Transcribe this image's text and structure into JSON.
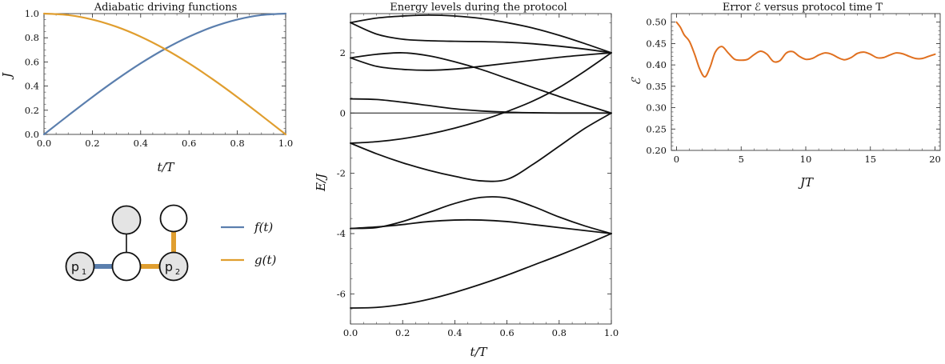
{
  "chart_data": [
    {
      "type": "line",
      "title": "Adiabatic driving functions",
      "xlabel": "t/T",
      "ylabel": "J",
      "xlim": [
        0,
        1
      ],
      "ylim": [
        0,
        1
      ],
      "xticks": [
        "0.0",
        "0.2",
        "0.4",
        "0.6",
        "0.8",
        "1.0"
      ],
      "yticks": [
        "0.0",
        "0.2",
        "0.4",
        "0.6",
        "0.8",
        "1.0"
      ],
      "legend_placement": "below-right",
      "series": [
        {
          "name": "f(t)",
          "color": "#5b7fae",
          "x": [
            0,
            0.1,
            0.2,
            0.3,
            0.4,
            0.5,
            0.6,
            0.7,
            0.8,
            0.9,
            1.0
          ],
          "y": [
            0,
            0.156,
            0.309,
            0.454,
            0.588,
            0.707,
            0.809,
            0.891,
            0.951,
            0.988,
            1.0
          ]
        },
        {
          "name": "g(t)",
          "color": "#e09e2f",
          "x": [
            0,
            0.1,
            0.2,
            0.3,
            0.4,
            0.5,
            0.6,
            0.7,
            0.8,
            0.9,
            1.0
          ],
          "y": [
            1.0,
            0.988,
            0.951,
            0.891,
            0.809,
            0.707,
            0.588,
            0.454,
            0.309,
            0.156,
            0
          ]
        }
      ]
    },
    {
      "type": "line",
      "title": "Energy levels during the protocol",
      "xlabel": "t/T",
      "ylabel": "E/J",
      "xlim": [
        0,
        1
      ],
      "ylim": [
        -7,
        3.3
      ],
      "xticks": [
        "0.0",
        "0.2",
        "0.4",
        "0.6",
        "0.8",
        "1.0"
      ],
      "yticks": [
        "-6",
        "-4",
        "-2",
        "0",
        "2"
      ],
      "x": [
        0,
        0.1,
        0.2,
        0.3,
        0.4,
        0.5,
        0.6,
        0.7,
        0.8,
        0.9,
        1.0
      ],
      "series": [
        {
          "values": [
            3.0,
            3.15,
            3.22,
            3.25,
            3.22,
            3.14,
            3.0,
            2.82,
            2.58,
            2.3,
            2.0
          ]
        },
        {
          "values": [
            3.0,
            2.62,
            2.45,
            2.4,
            2.38,
            2.37,
            2.35,
            2.3,
            2.22,
            2.12,
            2.0
          ]
        },
        {
          "values": [
            1.83,
            1.95,
            2.0,
            1.9,
            1.7,
            1.45,
            1.15,
            0.85,
            0.55,
            0.27,
            0.0
          ]
        },
        {
          "values": [
            1.83,
            1.55,
            1.45,
            1.42,
            1.46,
            1.55,
            1.65,
            1.75,
            1.85,
            1.93,
            2.0
          ]
        },
        {
          "values": [
            0.47,
            0.45,
            0.36,
            0.25,
            0.14,
            0.07,
            0.03,
            0.01,
            0.0,
            0.0,
            0.0
          ]
        },
        {
          "values": [
            -1.0,
            -0.95,
            -0.85,
            -0.7,
            -0.5,
            -0.25,
            0.05,
            0.4,
            0.85,
            1.4,
            2.0
          ]
        },
        {
          "values": [
            -1.0,
            -1.35,
            -1.65,
            -1.9,
            -2.1,
            -2.25,
            -2.2,
            -1.7,
            -1.1,
            -0.5,
            0.0
          ]
        },
        {
          "values": [
            -3.83,
            -3.8,
            -3.6,
            -3.3,
            -3.0,
            -2.8,
            -2.82,
            -3.1,
            -3.45,
            -3.75,
            -4.0
          ]
        },
        {
          "values": [
            -3.83,
            -3.78,
            -3.7,
            -3.6,
            -3.55,
            -3.55,
            -3.6,
            -3.7,
            -3.8,
            -3.9,
            -4.0
          ]
        },
        {
          "values": [
            -6.47,
            -6.45,
            -6.35,
            -6.18,
            -5.95,
            -5.68,
            -5.38,
            -5.05,
            -4.72,
            -4.37,
            -4.0
          ]
        }
      ]
    },
    {
      "type": "line",
      "title": "Error ℰ versus protocol time T",
      "xlabel": "JT",
      "ylabel": "ℰ",
      "xlim": [
        -0.4,
        20.4
      ],
      "ylim": [
        0.2,
        0.52
      ],
      "xticks": [
        "0",
        "5",
        "10",
        "15",
        "20"
      ],
      "yticks": [
        "0.20",
        "0.25",
        "0.30",
        "0.35",
        "0.40",
        "0.45",
        "0.50"
      ],
      "series": [
        {
          "color": "#e07020",
          "x": [
            0,
            0.3,
            0.6,
            1.0,
            1.4,
            1.8,
            2.2,
            2.6,
            3.0,
            3.5,
            4.0,
            4.5,
            5.0,
            5.5,
            6.0,
            6.5,
            7.0,
            7.5,
            8.0,
            8.5,
            9.0,
            9.5,
            10.0,
            10.5,
            11.0,
            11.5,
            12.0,
            12.5,
            13.0,
            13.5,
            14.0,
            14.5,
            15.0,
            15.5,
            16.0,
            16.5,
            17.0,
            17.5,
            18.0,
            18.5,
            19.0,
            19.5,
            20.0
          ],
          "y": [
            0.5,
            0.488,
            0.47,
            0.455,
            0.425,
            0.39,
            0.372,
            0.395,
            0.43,
            0.443,
            0.428,
            0.413,
            0.411,
            0.413,
            0.424,
            0.432,
            0.425,
            0.408,
            0.41,
            0.428,
            0.431,
            0.42,
            0.413,
            0.415,
            0.423,
            0.428,
            0.425,
            0.417,
            0.412,
            0.417,
            0.427,
            0.43,
            0.425,
            0.417,
            0.417,
            0.423,
            0.428,
            0.426,
            0.42,
            0.415,
            0.415,
            0.42,
            0.425
          ]
        }
      ]
    }
  ],
  "diagram": {
    "nodes": [
      {
        "id": "p1",
        "label": "p",
        "sub": "1",
        "fill": "#e4e4e4"
      },
      {
        "id": "center",
        "label": "",
        "sub": "",
        "fill": "#ffffff"
      },
      {
        "id": "top-gray",
        "label": "",
        "sub": "",
        "fill": "#e4e4e4"
      },
      {
        "id": "p2",
        "label": "p",
        "sub": "2",
        "fill": "#e4e4e4"
      },
      {
        "id": "top-white",
        "label": "",
        "sub": "",
        "fill": "#ffffff"
      }
    ]
  }
}
